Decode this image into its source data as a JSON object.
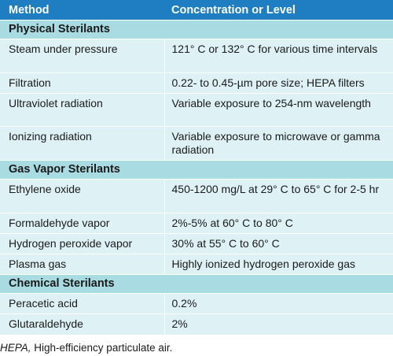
{
  "table": {
    "headers": [
      "Method",
      "Concentration or Level"
    ],
    "sections": [
      {
        "title": "Physical Sterilants",
        "rows": [
          {
            "method": "Steam under pressure",
            "level": "121° C or 132° C for various time intervals"
          },
          {
            "method": "Filtration",
            "level": "0.22- to 0.45-µm pore size; HEPA filters"
          },
          {
            "method": "Ultraviolet radiation",
            "level": "Variable exposure to 254-nm wavelength"
          },
          {
            "method": "Ionizing radiation",
            "level": "Variable exposure to microwave or gamma radiation"
          }
        ]
      },
      {
        "title": "Gas Vapor Sterilants",
        "rows": [
          {
            "method": "Ethylene oxide",
            "level": "450-1200 mg/L at 29° C to 65° C for 2-5 hr"
          },
          {
            "method": "Formaldehyde vapor",
            "level": "2%-5% at 60° C to 80° C"
          },
          {
            "method": "Hydrogen peroxide vapor",
            "level": "30% at 55° C to 60° C"
          },
          {
            "method": "Plasma gas",
            "level": "Highly ionized hydrogen peroxide gas"
          }
        ]
      },
      {
        "title": "Chemical Sterilants",
        "rows": [
          {
            "method": "Peracetic acid",
            "level": "0.2%"
          },
          {
            "method": "Glutaraldehyde",
            "level": "2%"
          }
        ]
      }
    ]
  },
  "footnote": {
    "abbreviation": "HEPA,",
    "text": " High-efficiency particulate air."
  }
}
